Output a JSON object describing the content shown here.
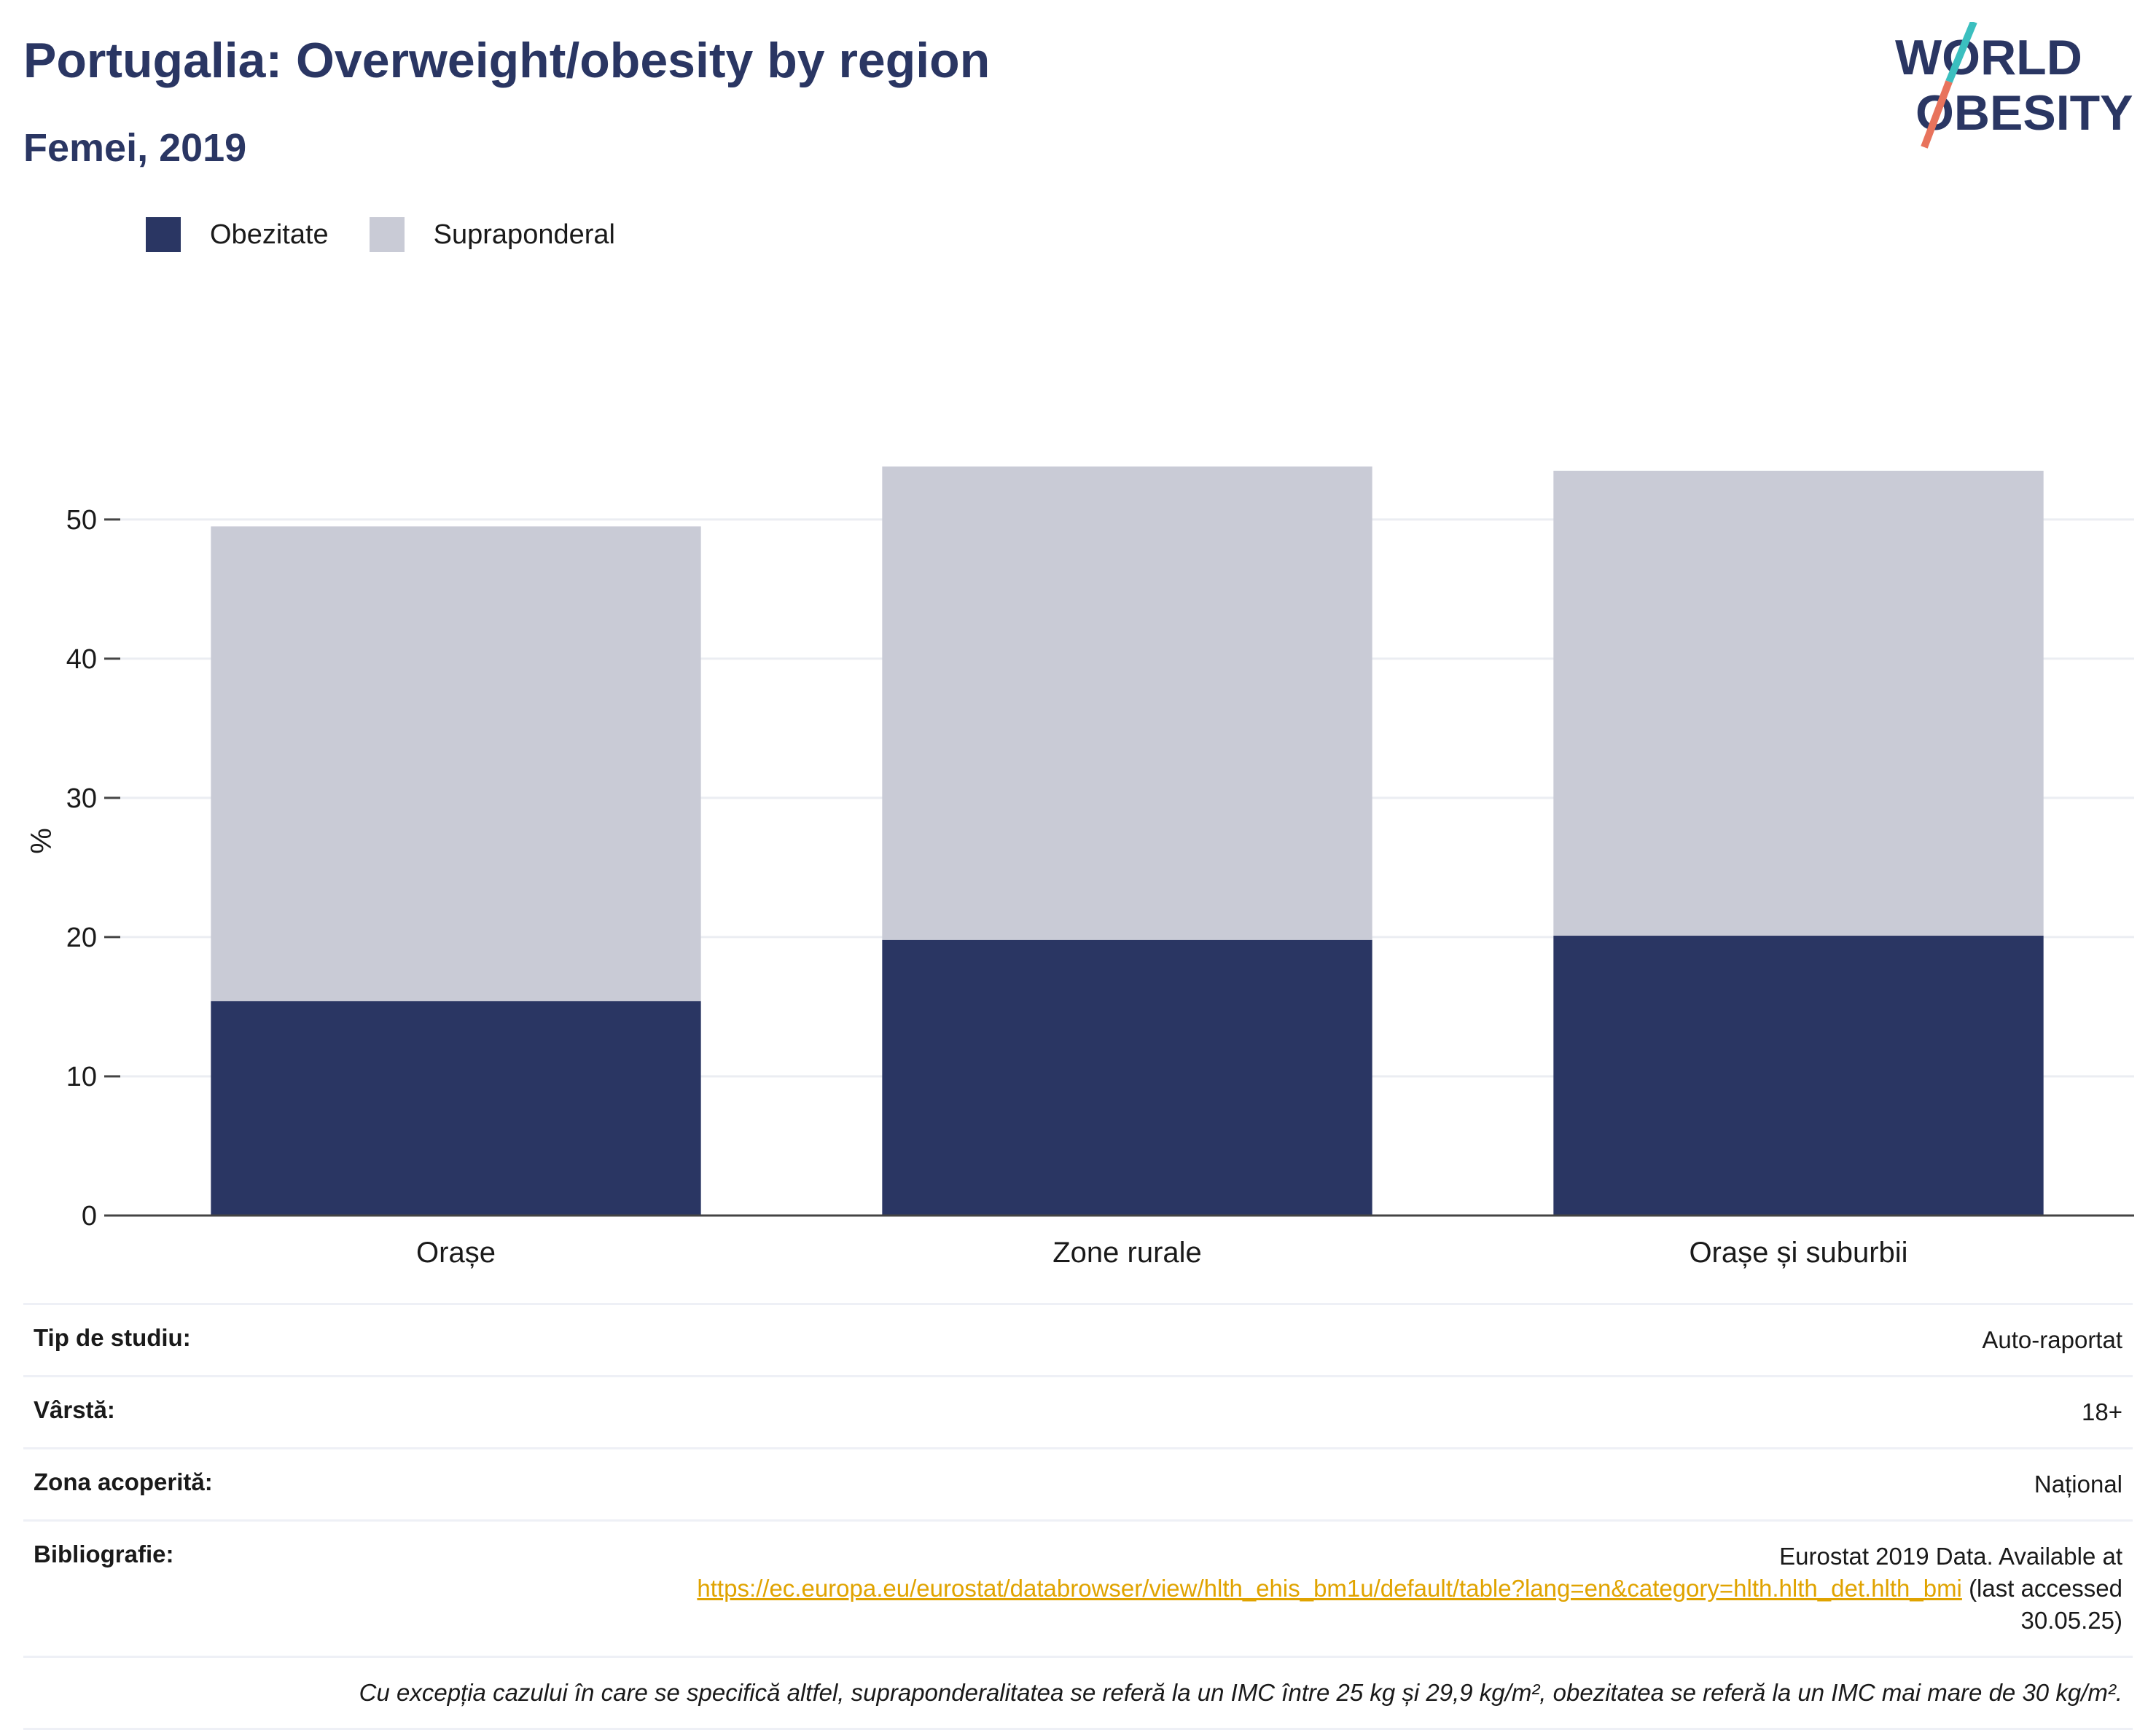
{
  "header": {
    "title": "Portugalia: Overweight/obesity by region",
    "subtitle": "Femei, 2019"
  },
  "logo": {
    "line1": "WORLD",
    "line2": "OBESITY"
  },
  "colors": {
    "obesity": "#2a3663",
    "overweight": "#c9cbd6",
    "accent": "#2a3663",
    "link": "#e0a300"
  },
  "chart_data": {
    "type": "bar",
    "stacked": true,
    "categories": [
      "Orașe",
      "Zone rurale",
      "Orașe și suburbii"
    ],
    "series": [
      {
        "name": "Obezitate",
        "values": [
          15.4,
          19.8,
          20.1
        ]
      },
      {
        "name": "Supraponderal",
        "values": [
          34.1,
          34.0,
          33.4
        ]
      }
    ],
    "ylabel": "%",
    "yticks": [
      0,
      10,
      20,
      30,
      40,
      50
    ],
    "ylim": [
      0,
      58
    ],
    "grid": true,
    "legend": "top-left"
  },
  "info": {
    "study_label": "Tip de studiu:",
    "study_value": "Auto-raportat",
    "age_label": "Vârstă:",
    "age_value": "18+",
    "area_label": "Zona acoperită:",
    "area_value": "Național",
    "biblio_label": "Bibliografie:",
    "biblio_text1": "Eurostat 2019 Data. Available at",
    "biblio_link": "https://ec.europa.eu/eurostat/databrowser/view/hlth_ehis_bm1u/default/table?lang=en&category=hlth.hlth_det.hlth_bmi",
    "biblio_text2": "(last accessed",
    "biblio_text3": "30.05.25)",
    "note": "Cu excepția cazului în care se specifică altfel, supraponderalitatea se referă la un IMC între 25 kg și 29,9 kg/m², obezitatea se referă la un IMC mai mare de 30 kg/m²."
  }
}
